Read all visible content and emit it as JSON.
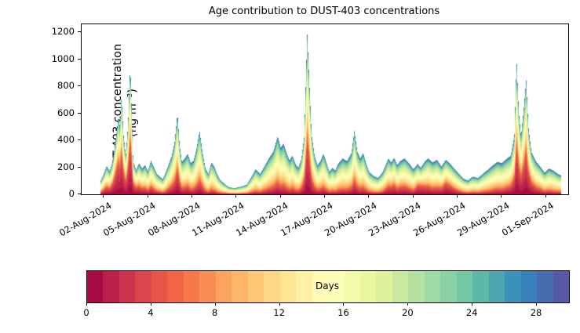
{
  "chart_data": {
    "type": "area",
    "title": "Age contribution to DUST-403 concentrations",
    "xlabel": "",
    "ylabel": "DUST-403 concentration (ng m⁻³)",
    "ylabel_line1": "DUST-403 concentration",
    "ylabel_line2": "(ng m⁻³)",
    "grid": false,
    "legend": "colorbar-bottom",
    "ylim": [
      0,
      1260
    ],
    "xlim_days_from_aug1": [
      0.5,
      33.5
    ],
    "y_ticks": [
      0,
      200,
      400,
      600,
      800,
      1000,
      1200
    ],
    "x_ticks": [
      {
        "day": 2,
        "label": "02-Aug-2024"
      },
      {
        "day": 5,
        "label": "05-Aug-2024"
      },
      {
        "day": 8,
        "label": "08-Aug-2024"
      },
      {
        "day": 11,
        "label": "11-Aug-2024"
      },
      {
        "day": 14,
        "label": "14-Aug-2024"
      },
      {
        "day": 17,
        "label": "17-Aug-2024"
      },
      {
        "day": 20,
        "label": "20-Aug-2024"
      },
      {
        "day": 23,
        "label": "23-Aug-2024"
      },
      {
        "day": 26,
        "label": "26-Aug-2024"
      },
      {
        "day": 29,
        "label": "29-Aug-2024"
      },
      {
        "day": 32,
        "label": "01-Sep-2024"
      }
    ],
    "age_bins": {
      "count": 30,
      "bin_width_days": 1
    },
    "aged_component": {
      "mean_age_days": 16,
      "sigma_days": 7
    },
    "fresh_component": {
      "mean_age_days": 2,
      "sigma_days": 2
    },
    "series_format": [
      "day_of_august_2024",
      "total_concentration_ng_m3",
      "fresh_fraction"
    ],
    "series": [
      [
        1.8,
        100,
        0.12
      ],
      [
        2.0,
        150,
        0.18
      ],
      [
        2.2,
        210,
        0.22
      ],
      [
        2.4,
        170,
        0.22
      ],
      [
        2.6,
        240,
        0.3
      ],
      [
        2.8,
        390,
        0.38
      ],
      [
        3.0,
        580,
        0.4
      ],
      [
        3.1,
        500,
        0.38
      ],
      [
        3.2,
        730,
        0.42
      ],
      [
        3.35,
        430,
        0.35
      ],
      [
        3.5,
        290,
        0.3
      ],
      [
        3.65,
        520,
        0.36
      ],
      [
        3.8,
        960,
        0.42
      ],
      [
        3.9,
        600,
        0.38
      ],
      [
        4.0,
        240,
        0.3
      ],
      [
        4.2,
        180,
        0.25
      ],
      [
        4.4,
        230,
        0.22
      ],
      [
        4.6,
        190,
        0.18
      ],
      [
        4.8,
        215,
        0.18
      ],
      [
        5.0,
        170,
        0.15
      ],
      [
        5.2,
        250,
        0.18
      ],
      [
        5.4,
        200,
        0.15
      ],
      [
        5.6,
        150,
        0.12
      ],
      [
        5.8,
        130,
        0.1
      ],
      [
        6.0,
        110,
        0.08
      ],
      [
        6.2,
        160,
        0.1
      ],
      [
        6.4,
        220,
        0.15
      ],
      [
        6.6,
        280,
        0.18
      ],
      [
        6.8,
        380,
        0.22
      ],
      [
        7.0,
        600,
        0.28
      ],
      [
        7.15,
        360,
        0.22
      ],
      [
        7.3,
        240,
        0.15
      ],
      [
        7.5,
        265,
        0.15
      ],
      [
        7.7,
        300,
        0.16
      ],
      [
        7.9,
        230,
        0.12
      ],
      [
        8.1,
        250,
        0.12
      ],
      [
        8.3,
        340,
        0.15
      ],
      [
        8.5,
        470,
        0.18
      ],
      [
        8.7,
        310,
        0.15
      ],
      [
        8.9,
        190,
        0.1
      ],
      [
        9.1,
        150,
        0.08
      ],
      [
        9.3,
        235,
        0.1
      ],
      [
        9.5,
        205,
        0.08
      ],
      [
        9.7,
        145,
        0.06
      ],
      [
        9.9,
        105,
        0.05
      ],
      [
        10.2,
        75,
        0.04
      ],
      [
        10.5,
        50,
        0.04
      ],
      [
        10.9,
        45,
        0.03
      ],
      [
        11.3,
        55,
        0.03
      ],
      [
        11.7,
        70,
        0.04
      ],
      [
        12.0,
        125,
        0.06
      ],
      [
        12.3,
        185,
        0.08
      ],
      [
        12.6,
        150,
        0.08
      ],
      [
        12.9,
        205,
        0.1
      ],
      [
        13.2,
        265,
        0.12
      ],
      [
        13.5,
        315,
        0.14
      ],
      [
        13.8,
        430,
        0.16
      ],
      [
        14.0,
        345,
        0.14
      ],
      [
        14.2,
        375,
        0.14
      ],
      [
        14.4,
        305,
        0.12
      ],
      [
        14.6,
        250,
        0.1
      ],
      [
        14.8,
        285,
        0.12
      ],
      [
        15.0,
        225,
        0.1
      ],
      [
        15.2,
        195,
        0.1
      ],
      [
        15.4,
        260,
        0.14
      ],
      [
        15.6,
        430,
        0.22
      ],
      [
        15.8,
        1190,
        0.32
      ],
      [
        15.95,
        820,
        0.3
      ],
      [
        16.1,
        440,
        0.22
      ],
      [
        16.3,
        285,
        0.15
      ],
      [
        16.5,
        215,
        0.12
      ],
      [
        16.7,
        245,
        0.12
      ],
      [
        16.9,
        300,
        0.13
      ],
      [
        17.1,
        235,
        0.1
      ],
      [
        17.3,
        165,
        0.08
      ],
      [
        17.5,
        195,
        0.08
      ],
      [
        17.7,
        175,
        0.08
      ],
      [
        17.9,
        225,
        0.1
      ],
      [
        18.2,
        265,
        0.1
      ],
      [
        18.5,
        245,
        0.1
      ],
      [
        18.8,
        305,
        0.12
      ],
      [
        19.0,
        470,
        0.18
      ],
      [
        19.2,
        315,
        0.14
      ],
      [
        19.4,
        265,
        0.12
      ],
      [
        19.6,
        305,
        0.12
      ],
      [
        19.8,
        225,
        0.1
      ],
      [
        20.0,
        165,
        0.08
      ],
      [
        20.3,
        135,
        0.06
      ],
      [
        20.6,
        120,
        0.06
      ],
      [
        20.9,
        160,
        0.09
      ],
      [
        21.1,
        210,
        0.14
      ],
      [
        21.3,
        265,
        0.18
      ],
      [
        21.5,
        235,
        0.2
      ],
      [
        21.7,
        270,
        0.22
      ],
      [
        21.9,
        215,
        0.16
      ],
      [
        22.1,
        245,
        0.18
      ],
      [
        22.4,
        265,
        0.18
      ],
      [
        22.7,
        230,
        0.15
      ],
      [
        23.0,
        185,
        0.12
      ],
      [
        23.3,
        225,
        0.25
      ],
      [
        23.5,
        195,
        0.3
      ],
      [
        23.8,
        245,
        0.2
      ],
      [
        24.0,
        265,
        0.18
      ],
      [
        24.3,
        235,
        0.15
      ],
      [
        24.6,
        255,
        0.15
      ],
      [
        24.9,
        205,
        0.18
      ],
      [
        25.2,
        255,
        0.3
      ],
      [
        25.5,
        225,
        0.25
      ],
      [
        25.8,
        185,
        0.18
      ],
      [
        26.1,
        150,
        0.12
      ],
      [
        26.4,
        115,
        0.08
      ],
      [
        26.7,
        100,
        0.06
      ],
      [
        27.0,
        130,
        0.06
      ],
      [
        27.4,
        120,
        0.06
      ],
      [
        27.8,
        160,
        0.08
      ],
      [
        28.1,
        185,
        0.08
      ],
      [
        28.4,
        215,
        0.1
      ],
      [
        28.7,
        240,
        0.12
      ],
      [
        29.0,
        230,
        0.12
      ],
      [
        29.3,
        260,
        0.15
      ],
      [
        29.6,
        285,
        0.18
      ],
      [
        29.85,
        430,
        0.25
      ],
      [
        30.0,
        1000,
        0.35
      ],
      [
        30.15,
        610,
        0.3
      ],
      [
        30.3,
        430,
        0.28
      ],
      [
        30.5,
        650,
        0.32
      ],
      [
        30.65,
        850,
        0.35
      ],
      [
        30.8,
        500,
        0.3
      ],
      [
        31.0,
        315,
        0.25
      ],
      [
        31.3,
        245,
        0.18
      ],
      [
        31.6,
        205,
        0.15
      ],
      [
        31.9,
        160,
        0.1
      ],
      [
        32.2,
        190,
        0.1
      ],
      [
        32.5,
        175,
        0.08
      ],
      [
        32.8,
        150,
        0.08
      ],
      [
        33.0,
        140,
        0.08
      ]
    ],
    "colormap": {
      "name": "Spectral",
      "stops": [
        "#9e0142",
        "#d53e4f",
        "#f46d43",
        "#fdae61",
        "#fee08b",
        "#ffffbf",
        "#e6f598",
        "#abdda4",
        "#66c2a5",
        "#3288bd",
        "#5e4fa2"
      ]
    },
    "colorbar": {
      "label": "Days",
      "ticks": [
        0,
        4,
        8,
        12,
        16,
        20,
        24,
        28
      ],
      "range": [
        0,
        30
      ],
      "segments": 30
    }
  }
}
